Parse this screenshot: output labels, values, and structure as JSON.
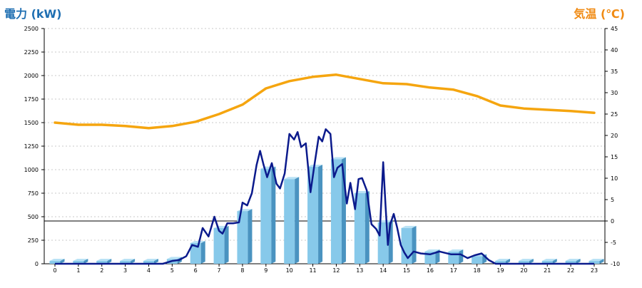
{
  "chart_data": {
    "type": "bar",
    "left_axis_title": "電力 (kW)",
    "right_axis_title": "気温 (℃)",
    "left_ylim": [
      0,
      2500
    ],
    "right_ylim": [
      -10,
      45
    ],
    "left_ticks": [
      0,
      250,
      500,
      750,
      1000,
      1250,
      1500,
      1750,
      2000,
      2250,
      2500
    ],
    "right_ticks": [
      -10,
      -5,
      0,
      5,
      10,
      15,
      20,
      25,
      30,
      35,
      40,
      45
    ],
    "x_ticks": [
      "0",
      "1",
      "2",
      "3",
      "4",
      "5",
      "6",
      "7",
      "8",
      "9",
      "10",
      "11",
      "12",
      "13",
      "14",
      "15",
      "16",
      "17",
      "18",
      "19",
      "20",
      "21",
      "22",
      "23"
    ],
    "grid": true,
    "colors": {
      "bar": "#87c9ea",
      "bar_dark": "#4a93c0",
      "power_line": "#0b1a8c",
      "temp_line": "#f5a50f",
      "axis_title_left": "#1f6fb2",
      "axis_title_right": "#f08a12"
    },
    "bars": [
      30,
      30,
      30,
      30,
      30,
      50,
      220,
      380,
      560,
      1010,
      900,
      1030,
      1110,
      750,
      440,
      380,
      130,
      130,
      80,
      30,
      30,
      30,
      30,
      30
    ],
    "temperature": {
      "x": [
        0,
        1,
        2,
        3,
        4,
        5,
        6,
        7,
        8,
        9,
        10,
        11,
        12,
        13,
        14,
        15,
        16,
        17,
        18,
        19,
        20,
        21,
        22,
        23
      ],
      "values": [
        23,
        22.5,
        22.5,
        22.2,
        21.7,
        22.2,
        23.2,
        25,
        27.2,
        31,
        32.7,
        33.7,
        34.2,
        33.2,
        32.2,
        32,
        31.2,
        30.7,
        29.2,
        27,
        26.3,
        26,
        25.7,
        25.3
      ]
    },
    "power": {
      "x": [
        0,
        1,
        2,
        3,
        4,
        4.6,
        5,
        5.3,
        5.6,
        5.85,
        6.1,
        6.3,
        6.55,
        6.8,
        7.0,
        7.15,
        7.35,
        7.6,
        7.85,
        8.0,
        8.2,
        8.4,
        8.6,
        8.75,
        8.9,
        9.05,
        9.25,
        9.45,
        9.6,
        9.8,
        10.0,
        10.2,
        10.35,
        10.5,
        10.7,
        10.9,
        11.05,
        11.25,
        11.4,
        11.55,
        11.75,
        11.9,
        12.05,
        12.25,
        12.45,
        12.6,
        12.8,
        12.95,
        13.1,
        13.3,
        13.5,
        13.7,
        13.85,
        14.0,
        14.1,
        14.2,
        14.3,
        14.45,
        14.6,
        14.75,
        14.9,
        15.05,
        15.3,
        15.6,
        16.0,
        16.4,
        16.9,
        17.3,
        17.6,
        17.9,
        18.2,
        18.5,
        18.8,
        19.2,
        20,
        21,
        22,
        23
      ],
      "values": [
        0,
        0,
        0,
        0,
        0,
        0,
        30,
        40,
        80,
        200,
        180,
        380,
        290,
        500,
        350,
        320,
        430,
        430,
        440,
        650,
        620,
        750,
        1050,
        1200,
        1050,
        920,
        1070,
        850,
        800,
        960,
        1380,
        1320,
        1400,
        1240,
        1280,
        760,
        1020,
        1350,
        1300,
        1430,
        1380,
        920,
        1020,
        1060,
        640,
        860,
        580,
        900,
        910,
        780,
        420,
        370,
        300,
        1080,
        620,
        200,
        420,
        530,
        380,
        200,
        120,
        60,
        130,
        110,
        100,
        130,
        100,
        100,
        60,
        90,
        110,
        40,
        0,
        0,
        0,
        0,
        0,
        0
      ]
    }
  }
}
